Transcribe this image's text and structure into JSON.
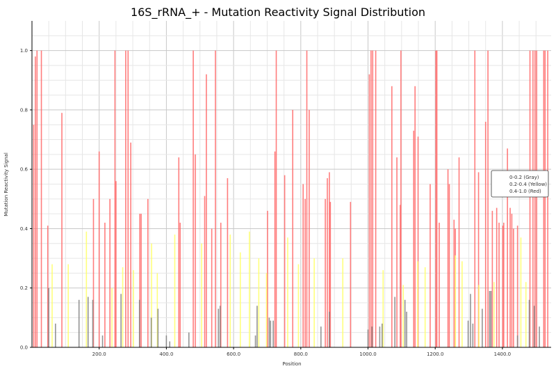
{
  "chart_data": {
    "type": "bar",
    "title": "16S_rRNA_+ - Mutation Reactivity Signal Distribution",
    "xlabel": "Position",
    "ylabel": "Mutation Reactivity Signal",
    "xlim": [
      0,
      1545
    ],
    "ylim": [
      0,
      1.1
    ],
    "x_ticks": [
      200,
      400,
      600,
      800,
      1000,
      1200,
      1400
    ],
    "x_tick_labels": [
      "200.0",
      "400.0",
      "600.0",
      "800.0",
      "1000.0",
      "1200.0",
      "1400.0"
    ],
    "y_ticks": [
      0,
      0.2,
      0.4,
      0.6,
      0.8,
      1.0
    ],
    "y_tick_labels": [
      "0.0",
      "0.2",
      "0.4",
      "0.6",
      "0.8",
      "1.0"
    ],
    "grid": true,
    "legend": {
      "placement": "right",
      "entries": [
        "0-0.2 (Gray)",
        "0.2-0.4 (Yellow)",
        "0.4-1.0 (Red)"
      ]
    },
    "colors": {
      "gray": "#808080",
      "yellow": "#ffff66",
      "red": "#ff6666"
    },
    "series": [
      {
        "name": "0.4-1.0 (Red)",
        "color": "#ff6666",
        "x": [
          5,
          10,
          15,
          28,
          47,
          89,
          183,
          200,
          217,
          232,
          247,
          250,
          279,
          286,
          294,
          321,
          325,
          345,
          437,
          441,
          480,
          486,
          514,
          519,
          535,
          546,
          562,
          582,
          701,
          723,
          727,
          752,
          776,
          807,
          813,
          818,
          825,
          873,
          879,
          885,
          888,
          948,
          1004,
          1009,
          1014,
          1023,
          1071,
          1086,
          1096,
          1098,
          1136,
          1140,
          1149,
          1185,
          1202,
          1205,
          1212,
          1238,
          1242,
          1256,
          1260,
          1271,
          1318,
          1329,
          1350,
          1357,
          1370,
          1383,
          1390,
          1401,
          1404,
          1415,
          1423,
          1428,
          1433,
          1445,
          1482,
          1491,
          1497,
          1502,
          1523,
          1527,
          1535
        ],
        "values": [
          0.75,
          0.98,
          1.0,
          1.0,
          0.41,
          0.79,
          0.5,
          0.66,
          0.42,
          0.5,
          1.0,
          0.56,
          1.0,
          1.0,
          0.69,
          0.45,
          0.45,
          0.5,
          0.64,
          0.42,
          1.0,
          0.65,
          0.51,
          0.92,
          0.4,
          1.0,
          0.42,
          0.57,
          0.46,
          0.66,
          1.0,
          0.58,
          0.8,
          0.55,
          0.5,
          1.0,
          0.8,
          0.5,
          0.57,
          0.59,
          0.49,
          0.49,
          0.92,
          1.0,
          1.0,
          1.0,
          0.88,
          0.64,
          0.48,
          1.0,
          0.73,
          0.88,
          0.71,
          0.55,
          1.0,
          1.0,
          0.42,
          0.6,
          0.55,
          0.43,
          0.4,
          0.64,
          1.0,
          0.59,
          0.76,
          1.0,
          0.46,
          0.47,
          0.42,
          0.41,
          0.42,
          0.67,
          0.47,
          0.45,
          0.4,
          0.41,
          1.0,
          1.0,
          1.0,
          1.0,
          1.0,
          1.0,
          1.0
        ]
      },
      {
        "name": "0.2-0.4 (Yellow)",
        "color": "#ffff66",
        "x": [
          60,
          108,
          162,
          238,
          270,
          302,
          356,
          373,
          425,
          505,
          590,
          620,
          647,
          675,
          698,
          761,
          793,
          840,
          925,
          1045,
          1105,
          1148,
          1170,
          1260,
          1280,
          1330,
          1375,
          1455,
          1470
        ],
        "values": [
          0.28,
          0.28,
          0.39,
          0.2,
          0.27,
          0.26,
          0.35,
          0.25,
          0.38,
          0.35,
          0.38,
          0.32,
          0.39,
          0.3,
          0.25,
          0.37,
          0.28,
          0.3,
          0.3,
          0.26,
          0.21,
          0.29,
          0.27,
          0.31,
          0.29,
          0.21,
          0.22,
          0.37,
          0.22
        ]
      },
      {
        "name": "0-0.2 (Gray)",
        "color": "#808080",
        "x": [
          50,
          70,
          140,
          167,
          181,
          210,
          265,
          320,
          355,
          375,
          400,
          410,
          467,
          555,
          560,
          665,
          670,
          706,
          710,
          718,
          860,
          885,
          1000,
          1012,
          1035,
          1042,
          1080,
          1110,
          1115,
          1298,
          1305,
          1312,
          1340,
          1362,
          1366,
          1445,
          1480,
          1495,
          1510
        ],
        "values": [
          0.2,
          0.08,
          0.16,
          0.17,
          0.16,
          0.04,
          0.18,
          0.16,
          0.1,
          0.13,
          0.04,
          0.02,
          0.05,
          0.13,
          0.14,
          0.04,
          0.14,
          0.1,
          0.09,
          0.09,
          0.07,
          0.12,
          0.06,
          0.07,
          0.07,
          0.08,
          0.17,
          0.16,
          0.12,
          0.09,
          0.18,
          0.08,
          0.13,
          0.19,
          0.19,
          0.04,
          0.16,
          0.14,
          0.07
        ]
      }
    ]
  }
}
